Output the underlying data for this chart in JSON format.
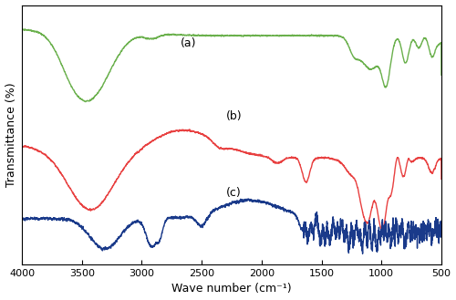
{
  "title": "",
  "xlabel": "Wave number (cm⁻¹)",
  "ylabel": "Transmittance (%)",
  "xmin": 500,
  "xmax": 4000,
  "colors": {
    "a": "#6ab04c",
    "b": "#e84040",
    "c": "#1a3a8a"
  },
  "labels": {
    "a": "(a)",
    "b": "(b)",
    "c": "(c)"
  },
  "xticks": [
    500,
    1000,
    1500,
    2000,
    2500,
    3000,
    3500,
    4000
  ],
  "linewidth": 1.0
}
